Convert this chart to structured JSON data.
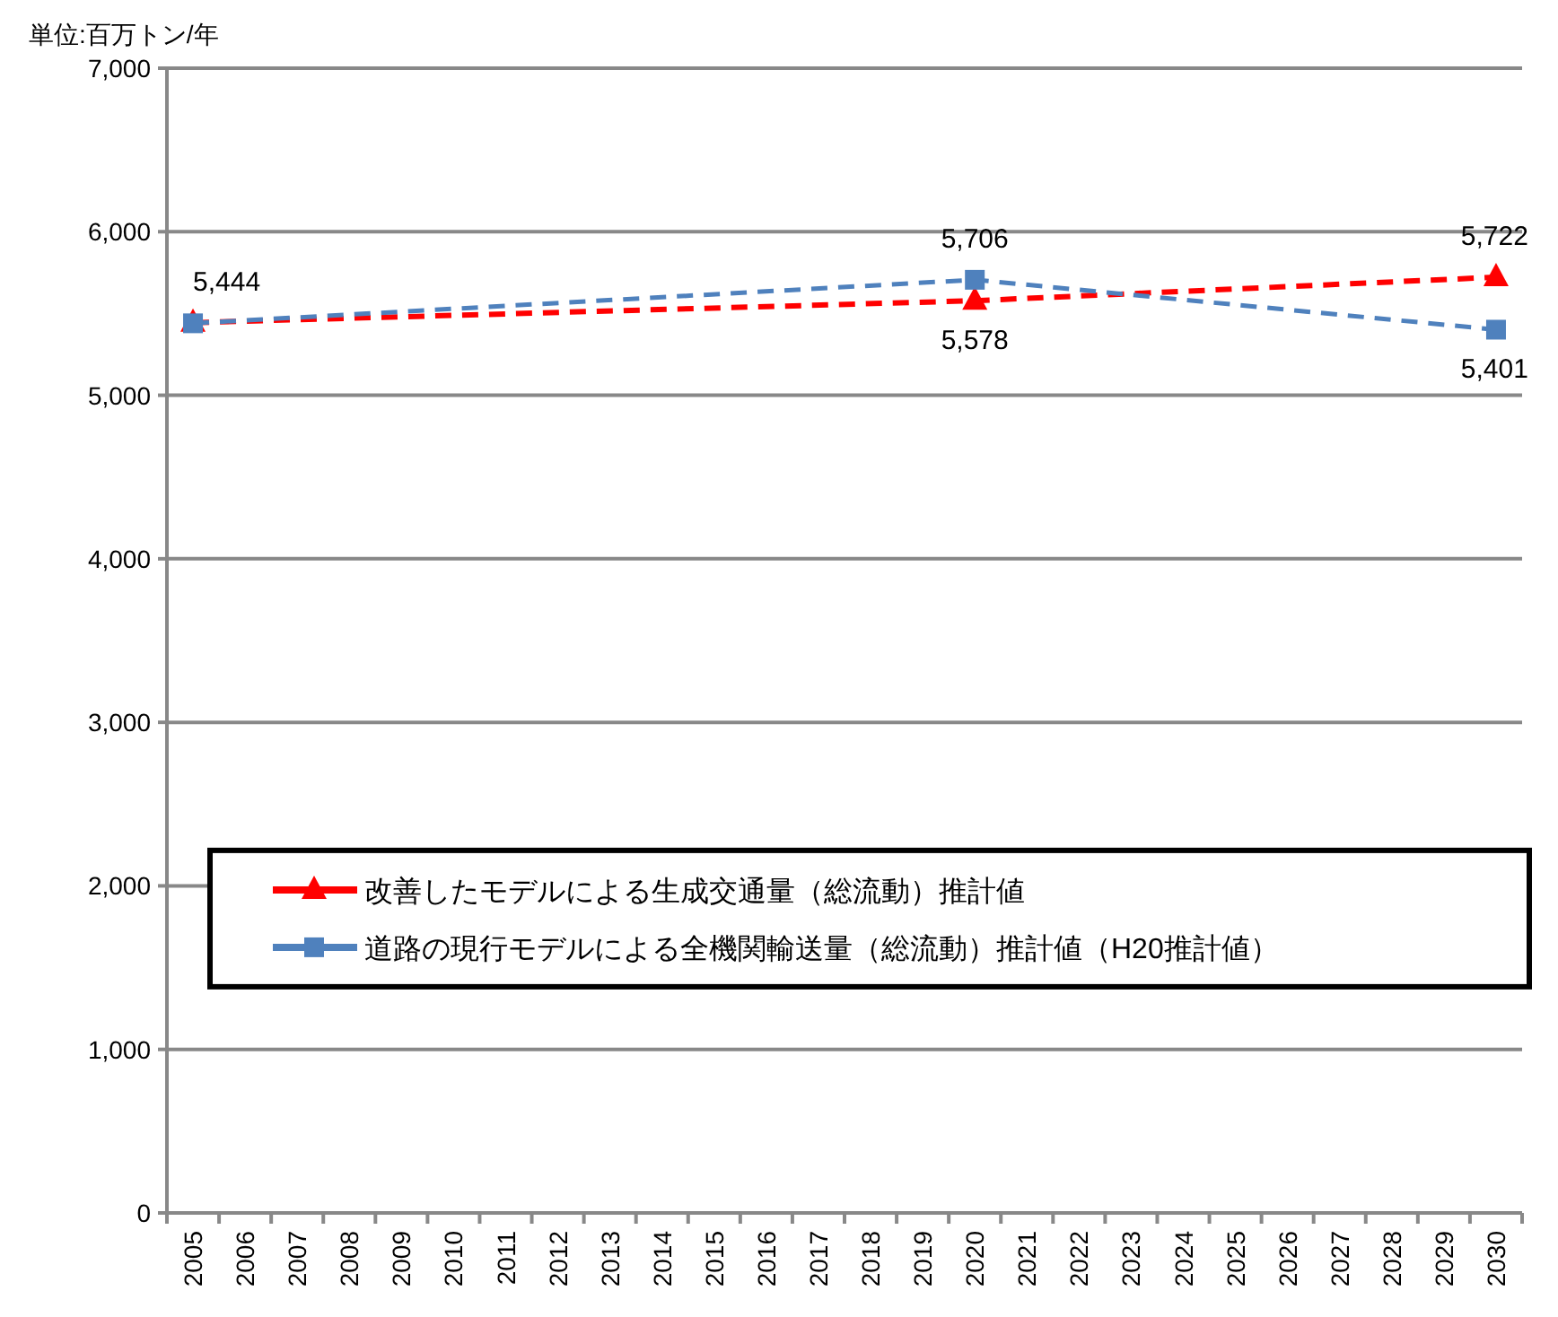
{
  "chart_data": {
    "type": "line",
    "categories": [
      "2005",
      "2006",
      "2007",
      "2008",
      "2009",
      "2010",
      "2011",
      "2012",
      "2013",
      "2014",
      "2015",
      "2016",
      "2017",
      "2018",
      "2019",
      "2020",
      "2021",
      "2022",
      "2023",
      "2024",
      "2025",
      "2026",
      "2027",
      "2028",
      "2029",
      "2030"
    ],
    "series": [
      {
        "name": "改善したモデルによる生成交通量（総流動）推計値",
        "color": "#ff0000",
        "marker": "triangle",
        "values": [
          5444,
          null,
          null,
          null,
          null,
          null,
          null,
          null,
          null,
          null,
          null,
          null,
          null,
          null,
          null,
          5578,
          null,
          null,
          null,
          null,
          null,
          null,
          null,
          null,
          null,
          5722
        ],
        "value_labels": [
          "5,444",
          null,
          null,
          null,
          null,
          null,
          null,
          null,
          null,
          null,
          null,
          null,
          null,
          null,
          null,
          "5,578",
          null,
          null,
          null,
          null,
          null,
          null,
          null,
          null,
          null,
          "5,722"
        ]
      },
      {
        "name": "道路の現行モデルによる全機関輸送量（総流動）推計値（H20推計値）",
        "color": "#4f81bd",
        "marker": "square",
        "values": [
          5440,
          null,
          null,
          null,
          null,
          null,
          null,
          null,
          null,
          null,
          null,
          null,
          null,
          null,
          null,
          5706,
          null,
          null,
          null,
          null,
          null,
          null,
          null,
          null,
          null,
          5401
        ],
        "value_labels": [
          null,
          null,
          null,
          null,
          null,
          null,
          null,
          null,
          null,
          null,
          null,
          null,
          null,
          null,
          null,
          "5,706",
          null,
          null,
          null,
          null,
          null,
          null,
          null,
          null,
          null,
          "5,401"
        ]
      }
    ],
    "ylim": [
      0,
      7000
    ],
    "yticks": [
      {
        "value": 0,
        "label": "0"
      },
      {
        "value": 1000,
        "label": "1,000"
      },
      {
        "value": 2000,
        "label": "2,000"
      },
      {
        "value": 3000,
        "label": "3,000"
      },
      {
        "value": 4000,
        "label": "4,000"
      },
      {
        "value": 5000,
        "label": "5,000"
      },
      {
        "value": 6000,
        "label": "6,000"
      },
      {
        "value": 7000,
        "label": "7,000"
      }
    ],
    "grid": "y",
    "line_style": "dashed",
    "legend": "bottom",
    "annotations": [
      "単位:百万トン/年"
    ]
  }
}
